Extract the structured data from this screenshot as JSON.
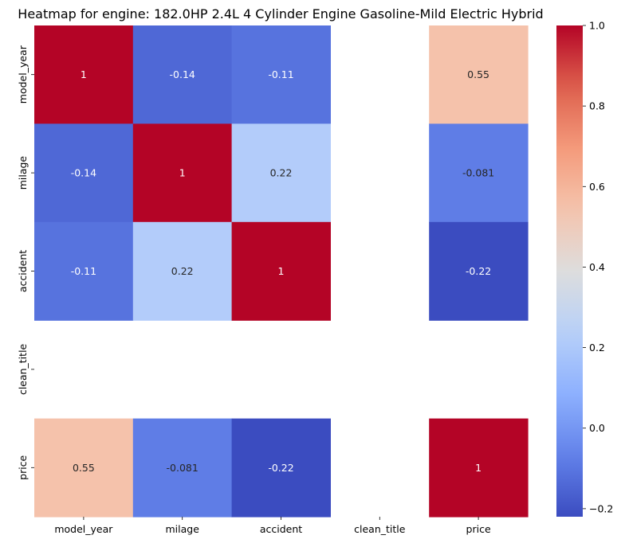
{
  "chart_data": {
    "type": "heatmap",
    "title": "Heatmap for engine: 182.0HP 2.4L 4 Cylinder Engine Gasoline-Mild Electric Hybrid",
    "xlabel": "",
    "ylabel": "",
    "x_categories": [
      "model_year",
      "milage",
      "accident",
      "clean_title",
      "price"
    ],
    "y_categories": [
      "model_year",
      "milage",
      "accident",
      "clean_title",
      "price"
    ],
    "values": [
      [
        1,
        -0.14,
        -0.11,
        null,
        0.55
      ],
      [
        -0.14,
        1,
        0.22,
        null,
        -0.081
      ],
      [
        -0.11,
        0.22,
        1,
        null,
        -0.22
      ],
      [
        null,
        null,
        null,
        null,
        null
      ],
      [
        0.55,
        -0.081,
        -0.22,
        null,
        1
      ]
    ],
    "value_labels": [
      [
        "1",
        "-0.14",
        "-0.11",
        "",
        "0.55"
      ],
      [
        "-0.14",
        "1",
        "0.22",
        "",
        "-0.081"
      ],
      [
        "-0.11",
        "0.22",
        "1",
        "",
        "-0.22"
      ],
      [
        "",
        "",
        "",
        "",
        ""
      ],
      [
        "0.55",
        "-0.081",
        "-0.22",
        "",
        "1"
      ]
    ],
    "colormap": "coolwarm",
    "colorbar": {
      "vmin": -0.22,
      "vmax": 1.0,
      "ticks": [
        -0.2,
        0.0,
        0.2,
        0.4,
        0.6,
        0.8,
        1.0
      ],
      "tick_labels": [
        "−0.2",
        "0.0",
        "0.2",
        "0.4",
        "0.6",
        "0.8",
        "1.0"
      ]
    }
  }
}
